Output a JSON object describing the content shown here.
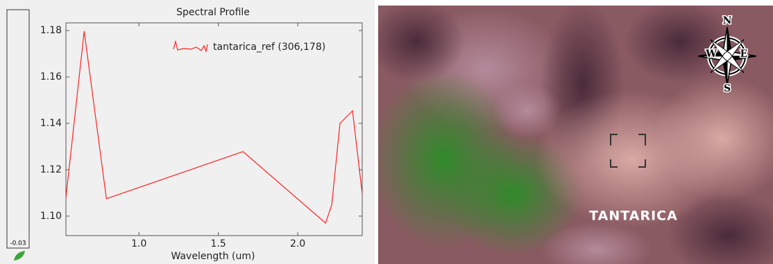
{
  "chart_data": {
    "type": "line",
    "title": "Spectral Profile",
    "x_label": "Wavelength (um)",
    "x": [
      0.54,
      0.655,
      0.795,
      1.655,
      2.175,
      2.214,
      2.266,
      2.345,
      2.406
    ],
    "series": [
      {
        "name": "tantarica_ref (306,178)",
        "color": "#ff2020",
        "values": [
          1.108,
          1.1797,
          1.1075,
          1.1278,
          1.097,
          1.1048,
          1.14,
          1.1454,
          1.1096
        ]
      }
    ],
    "xlim": [
      0.54,
      2.406
    ],
    "ylim": [
      1.0916,
      1.1833
    ],
    "xticks": [
      {
        "value": 1,
        "label": "1.0"
      },
      1.5,
      {
        "value": 2,
        "label": "2.0"
      }
    ],
    "yticks": [
      {
        "value": 1.1,
        "label": "1.10"
      },
      1.12,
      1.14,
      1.16,
      1.18
    ],
    "legend": "upper right"
  },
  "colorbar": {
    "label": "-0.03"
  },
  "image": {
    "place_label": "TANTARICA",
    "compass": {
      "n": "N",
      "e": "E",
      "s": "S",
      "w": "W"
    }
  }
}
